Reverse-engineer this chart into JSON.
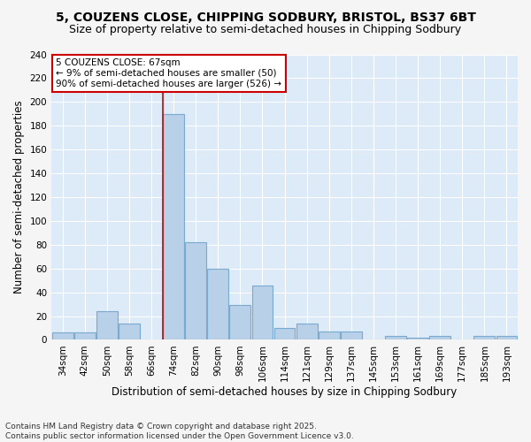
{
  "title1": "5, COUZENS CLOSE, CHIPPING SODBURY, BRISTOL, BS37 6BT",
  "title2": "Size of property relative to semi-detached houses in Chipping Sodbury",
  "xlabel": "Distribution of semi-detached houses by size in Chipping Sodbury",
  "ylabel": "Number of semi-detached properties",
  "categories": [
    "34sqm",
    "42sqm",
    "50sqm",
    "58sqm",
    "66sqm",
    "74sqm",
    "82sqm",
    "90sqm",
    "98sqm",
    "106sqm",
    "114sqm",
    "121sqm",
    "129sqm",
    "137sqm",
    "145sqm",
    "153sqm",
    "161sqm",
    "169sqm",
    "177sqm",
    "185sqm",
    "193sqm"
  ],
  "values": [
    6,
    6,
    24,
    14,
    0,
    190,
    82,
    60,
    29,
    46,
    10,
    14,
    7,
    7,
    0,
    3,
    2,
    3,
    0,
    3,
    3
  ],
  "bar_color": "#b8d0e8",
  "bar_edge_color": "#7aaacf",
  "background_color": "#ddeaf7",
  "plot_bg_color": "#ddeaf7",
  "fig_bg_color": "#f5f5f5",
  "grid_color": "#ffffff",
  "red_line_x": 4.5,
  "annotation_title": "5 COUZENS CLOSE: 67sqm",
  "annotation_line1": "← 9% of semi-detached houses are smaller (50)",
  "annotation_line2": "90% of semi-detached houses are larger (526) →",
  "annotation_box_color": "#ffffff",
  "annotation_border_color": "#cc0000",
  "red_line_color": "#cc0000",
  "ylim": [
    0,
    240
  ],
  "yticks": [
    0,
    20,
    40,
    60,
    80,
    100,
    120,
    140,
    160,
    180,
    200,
    220,
    240
  ],
  "footer": "Contains HM Land Registry data © Crown copyright and database right 2025.\nContains public sector information licensed under the Open Government Licence v3.0.",
  "title1_fontsize": 10,
  "title2_fontsize": 9,
  "tick_fontsize": 7.5,
  "xlabel_fontsize": 8.5,
  "ylabel_fontsize": 8.5,
  "footer_fontsize": 6.5
}
